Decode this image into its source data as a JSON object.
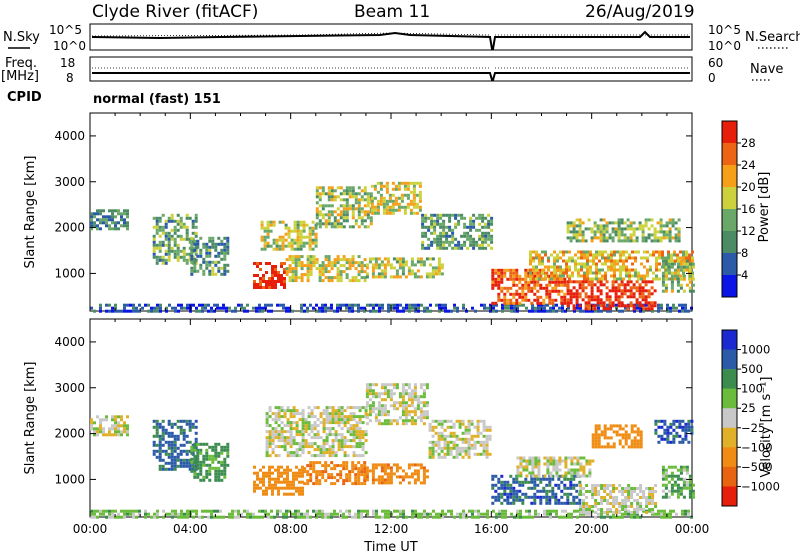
{
  "header": {
    "station": "Clyde River (fitACF)",
    "beam": "Beam 11",
    "date": "26/Aug/2019"
  },
  "aux": {
    "nsky_label": "N.Sky",
    "nsearch_label": "N.Search",
    "freq_label": "Freq.",
    "freq_unit": "[MHz]",
    "nave_label": "Nave",
    "cpid_label": "CPID",
    "cpid_value": "normal (fast) 151",
    "noise_ticks_left": [
      "10^5",
      "10^0"
    ],
    "noise_ticks_right": [
      "10^5",
      "10^0"
    ],
    "freq_ticks": [
      "18",
      "8"
    ],
    "nave_ticks": [
      "60",
      "0"
    ]
  },
  "colors": {
    "power": [
      "#0a14e6",
      "#2a5aa8",
      "#4c8c64",
      "#6aa86a",
      "#cdd23c",
      "#f5a018",
      "#ec6414",
      "#e61e0a"
    ],
    "velocity": [
      "#1a2ad0",
      "#2a5aa8",
      "#3c8c50",
      "#6cbc3c",
      "#c8c8c8",
      "#e0b028",
      "#f08c14",
      "#e86410",
      "#e61e0a"
    ]
  },
  "chart_data": [
    {
      "type": "heatmap",
      "title": "",
      "xlabel": "",
      "ylabel": "Slant Range [km]",
      "x_ticks": [
        "00:00",
        "04:00",
        "08:00",
        "12:00",
        "16:00",
        "20:00",
        "00:00"
      ],
      "y_ticks": [
        "1000",
        "2000",
        "3000",
        "4000"
      ],
      "xlim": [
        0,
        24
      ],
      "ylim": [
        180,
        4500
      ],
      "colorbar": {
        "label": "Power [dB]",
        "ticks": [
          "4",
          "8",
          "12",
          "16",
          "20",
          "24",
          "28"
        ],
        "range": [
          0,
          32
        ]
      },
      "echo_regions": [
        {
          "t": [
            0.0,
            24.0
          ],
          "r": [
            180,
            340
          ],
          "value": 5
        },
        {
          "t": [
            0.0,
            1.5
          ],
          "r": [
            1950,
            2400
          ],
          "value": 10
        },
        {
          "t": [
            2.5,
            4.2
          ],
          "r": [
            1200,
            2300
          ],
          "value": 13
        },
        {
          "t": [
            4.0,
            5.5
          ],
          "r": [
            1000,
            1800
          ],
          "value": 11
        },
        {
          "t": [
            6.5,
            7.8
          ],
          "r": [
            700,
            1250
          ],
          "value": 30
        },
        {
          "t": [
            7.8,
            11.0
          ],
          "r": [
            850,
            1400
          ],
          "value": 18
        },
        {
          "t": [
            11.0,
            14.0
          ],
          "r": [
            950,
            1350
          ],
          "value": 16
        },
        {
          "t": [
            6.8,
            9.0
          ],
          "r": [
            1500,
            2150
          ],
          "value": 17
        },
        {
          "t": [
            9.0,
            11.2
          ],
          "r": [
            2000,
            2900
          ],
          "value": 16
        },
        {
          "t": [
            11.2,
            13.2
          ],
          "r": [
            2300,
            3000
          ],
          "value": 18
        },
        {
          "t": [
            13.2,
            16.0
          ],
          "r": [
            1550,
            2300
          ],
          "value": 12
        },
        {
          "t": [
            16.0,
            19.0
          ],
          "r": [
            350,
            1100
          ],
          "value": 27
        },
        {
          "t": [
            19.0,
            22.5
          ],
          "r": [
            250,
            850
          ],
          "value": 30
        },
        {
          "t": [
            17.5,
            24.0
          ],
          "r": [
            900,
            1500
          ],
          "value": 20
        },
        {
          "t": [
            19.0,
            23.5
          ],
          "r": [
            1700,
            2200
          ],
          "value": 15
        },
        {
          "t": [
            22.8,
            24.0
          ],
          "r": [
            600,
            1300
          ],
          "value": 16
        }
      ]
    },
    {
      "type": "heatmap",
      "title": "",
      "xlabel": "Time UT",
      "ylabel": "Slant Range [km]",
      "x_ticks": [
        "00:00",
        "04:00",
        "08:00",
        "12:00",
        "16:00",
        "20:00",
        "00:00"
      ],
      "y_ticks": [
        "1000",
        "2000",
        "3000",
        "4000"
      ],
      "xlim": [
        0,
        24
      ],
      "ylim": [
        180,
        4500
      ],
      "colorbar": {
        "label": "Velocity [m s⁻¹]",
        "ticks": [
          "1000",
          "500",
          "100",
          "25",
          "−25",
          "−100",
          "−500",
          "−1000"
        ],
        "range": [
          -1200,
          1200
        ]
      },
      "echo_regions": [
        {
          "t": [
            0.0,
            24.0
          ],
          "r": [
            180,
            340
          ],
          "value": 60
        },
        {
          "t": [
            0.0,
            1.5
          ],
          "r": [
            1950,
            2400
          ],
          "value": 0
        },
        {
          "t": [
            2.5,
            4.2
          ],
          "r": [
            1200,
            2300
          ],
          "value": 600
        },
        {
          "t": [
            4.0,
            5.5
          ],
          "r": [
            1000,
            1800
          ],
          "value": 150
        },
        {
          "t": [
            6.5,
            8.5
          ],
          "r": [
            700,
            1300
          ],
          "value": -300
        },
        {
          "t": [
            8.5,
            11.0
          ],
          "r": [
            900,
            1400
          ],
          "value": -400
        },
        {
          "t": [
            11.0,
            13.5
          ],
          "r": [
            950,
            1350
          ],
          "value": -350
        },
        {
          "t": [
            7.0,
            11.0
          ],
          "r": [
            1550,
            2600
          ],
          "value": 0
        },
        {
          "t": [
            11.0,
            13.5
          ],
          "r": [
            2200,
            3100
          ],
          "value": 0
        },
        {
          "t": [
            13.5,
            16.0
          ],
          "r": [
            1450,
            2300
          ],
          "value": 0
        },
        {
          "t": [
            16.0,
            19.5
          ],
          "r": [
            500,
            1100
          ],
          "value": 700
        },
        {
          "t": [
            19.5,
            22.5
          ],
          "r": [
            300,
            900
          ],
          "value": 0
        },
        {
          "t": [
            17.0,
            20.0
          ],
          "r": [
            1100,
            1500
          ],
          "value": 0
        },
        {
          "t": [
            20.0,
            22.0
          ],
          "r": [
            1700,
            2200
          ],
          "value": -300
        },
        {
          "t": [
            22.5,
            24.0
          ],
          "r": [
            1800,
            2300
          ],
          "value": 800
        },
        {
          "t": [
            22.8,
            24.0
          ],
          "r": [
            600,
            1300
          ],
          "value": 80
        }
      ]
    }
  ]
}
